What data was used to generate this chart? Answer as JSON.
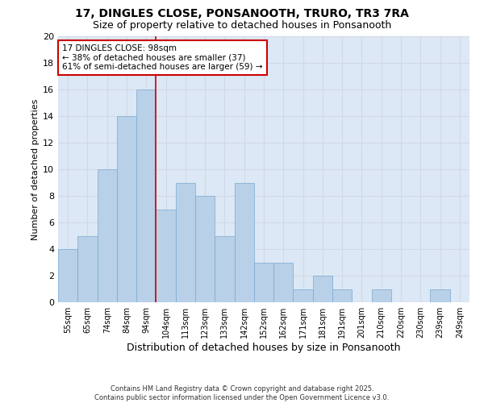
{
  "title": "17, DINGLES CLOSE, PONSANOOTH, TRURO, TR3 7RA",
  "subtitle": "Size of property relative to detached houses in Ponsanooth",
  "xlabel": "Distribution of detached houses by size in Ponsanooth",
  "ylabel": "Number of detached properties",
  "categories": [
    "55sqm",
    "65sqm",
    "74sqm",
    "84sqm",
    "94sqm",
    "104sqm",
    "113sqm",
    "123sqm",
    "133sqm",
    "142sqm",
    "152sqm",
    "162sqm",
    "171sqm",
    "181sqm",
    "191sqm",
    "201sqm",
    "210sqm",
    "220sqm",
    "230sqm",
    "239sqm",
    "249sqm"
  ],
  "values": [
    4,
    5,
    10,
    14,
    16,
    7,
    9,
    8,
    5,
    9,
    3,
    3,
    1,
    2,
    1,
    0,
    1,
    0,
    0,
    1,
    0
  ],
  "bar_color": "#b8d0e8",
  "bar_edge_color": "#7aaad0",
  "bar_width": 1.0,
  "property_line_x": 4.5,
  "annotation_text": "17 DINGLES CLOSE: 98sqm\n← 38% of detached houses are smaller (37)\n61% of semi-detached houses are larger (59) →",
  "annotation_box_color": "#ffffff",
  "annotation_box_edge": "#cc0000",
  "line_color": "#cc0000",
  "ylim": [
    0,
    20
  ],
  "yticks": [
    0,
    2,
    4,
    6,
    8,
    10,
    12,
    14,
    16,
    18,
    20
  ],
  "grid_color": "#d0d8e8",
  "background_color": "#dce8f5",
  "footnote": "Contains HM Land Registry data © Crown copyright and database right 2025.\nContains public sector information licensed under the Open Government Licence v3.0.",
  "title_fontsize": 10,
  "subtitle_fontsize": 9,
  "axis_label_fontsize": 8,
  "tick_fontsize": 7,
  "annotation_fontsize": 7.5
}
